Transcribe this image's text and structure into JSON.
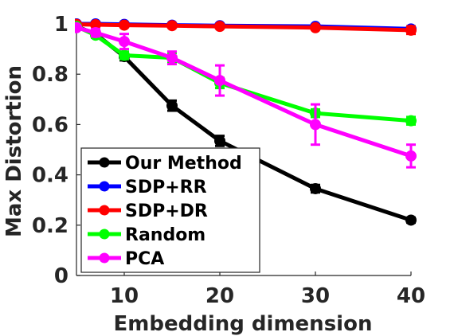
{
  "chart_data": {
    "type": "line",
    "title": "",
    "xlabel": "Embedding dimension",
    "ylabel": "Max Distortion",
    "xlim": [
      5,
      40
    ],
    "ylim": [
      0,
      1
    ],
    "xticks": [
      10,
      20,
      30,
      40
    ],
    "yticks": [
      0,
      0.2,
      0.4,
      0.6,
      0.8,
      1
    ],
    "ytick_labels": [
      "0",
      "0.2",
      "0.4",
      "0.6",
      "0.8",
      "1"
    ],
    "grid": false,
    "legend_position": "lower-left",
    "series": [
      {
        "name": "Our Method",
        "color": "#000000",
        "marker": "circle",
        "x": [
          5,
          7,
          10,
          15,
          20,
          30,
          40
        ],
        "y": [
          0.99,
          0.96,
          0.87,
          0.675,
          0.535,
          0.345,
          0.22
        ],
        "err": [
          0,
          0.01,
          0.015,
          0.02,
          0.02,
          0.015,
          0.01
        ]
      },
      {
        "name": "SDP+RR",
        "color": "#0000ff",
        "marker": "circle",
        "x": [
          5,
          7,
          10,
          15,
          20,
          30,
          40
        ],
        "y": [
          1.0,
          1.0,
          0.998,
          0.995,
          0.993,
          0.99,
          0.98
        ],
        "err": [
          0,
          0,
          0,
          0,
          0,
          0.005,
          0.01
        ]
      },
      {
        "name": "SDP+DR",
        "color": "#ff0000",
        "marker": "circle",
        "x": [
          5,
          7,
          10,
          15,
          20,
          30,
          40
        ],
        "y": [
          0.998,
          0.997,
          0.995,
          0.993,
          0.99,
          0.985,
          0.975
        ],
        "err": [
          0,
          0,
          0,
          0,
          0,
          0.005,
          0.015
        ]
      },
      {
        "name": "Random",
        "color": "#00ff00",
        "marker": "circle",
        "x": [
          5,
          7,
          10,
          15,
          20,
          30,
          40
        ],
        "y": [
          0.99,
          0.955,
          0.875,
          0.865,
          0.765,
          0.645,
          0.615
        ],
        "err": [
          0,
          0.01,
          0.015,
          0.02,
          0.02,
          0.015,
          0.015
        ]
      },
      {
        "name": "PCA",
        "color": "#ff00ff",
        "marker": "circle",
        "x": [
          5,
          7,
          10,
          15,
          20,
          30,
          40
        ],
        "y": [
          0.985,
          0.965,
          0.93,
          0.865,
          0.775,
          0.6,
          0.475
        ],
        "err": [
          0,
          0.015,
          0.03,
          0.025,
          0.06,
          0.08,
          0.045
        ]
      }
    ]
  }
}
